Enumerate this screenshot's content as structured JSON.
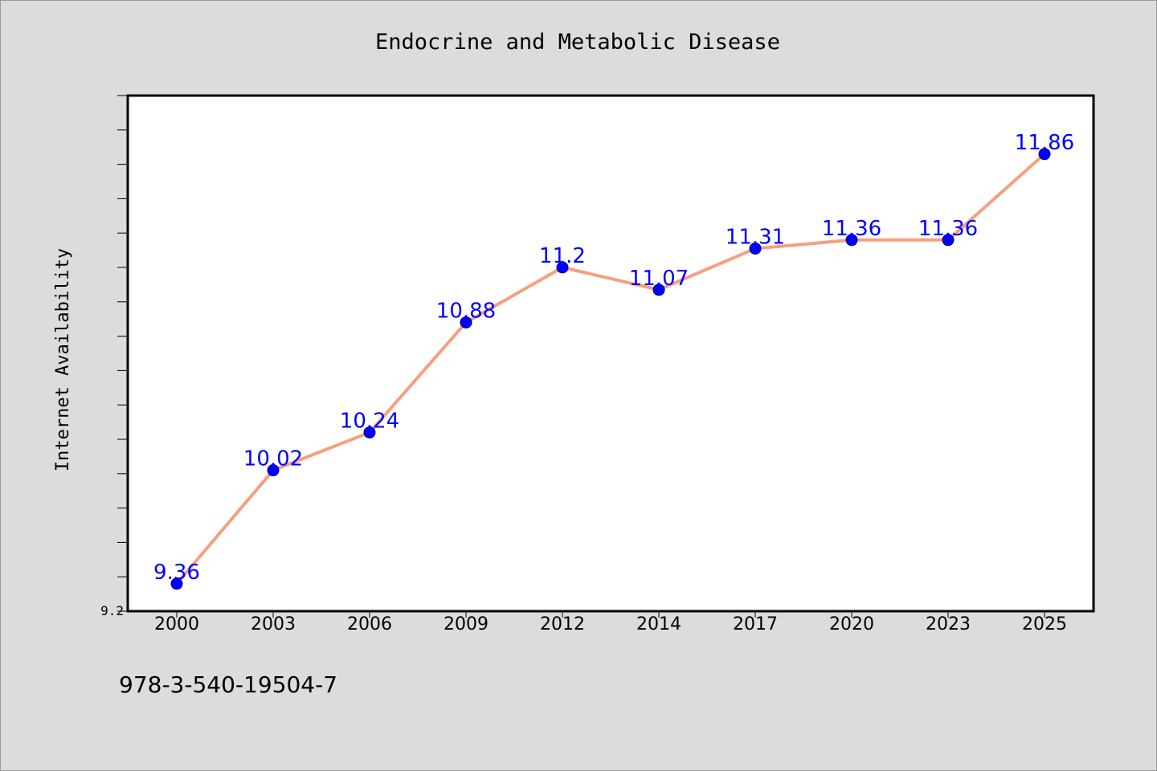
{
  "chart_data": {
    "type": "line",
    "title": "Endocrine and Metabolic Disease",
    "xlabel": "",
    "ylabel": "Internet Availability",
    "x": [
      "2000",
      "2003",
      "2006",
      "2009",
      "2012",
      "2014",
      "2017",
      "2020",
      "2023",
      "2025"
    ],
    "series": [
      {
        "values": [
          9.36,
          10.02,
          10.24,
          10.88,
          11.2,
          11.07,
          11.31,
          11.36,
          11.36,
          11.86
        ]
      }
    ],
    "data_labels": [
      "9.36",
      "10.02",
      "10.24",
      "10.88",
      "11.2",
      "11.07",
      "11.31",
      "11.36",
      "11.36",
      "11.86"
    ],
    "ylim": [
      9.2,
      12.2
    ],
    "ytick_labels": [
      "9.2"
    ],
    "grid": false,
    "legend": false,
    "colors": {
      "line": "#f4a07f",
      "marker": "#0000ff",
      "label": "#0000ff",
      "background": "#dcdcdc",
      "plot_background": "#ffffff"
    }
  },
  "footer_text": "978-3-540-19504-7"
}
